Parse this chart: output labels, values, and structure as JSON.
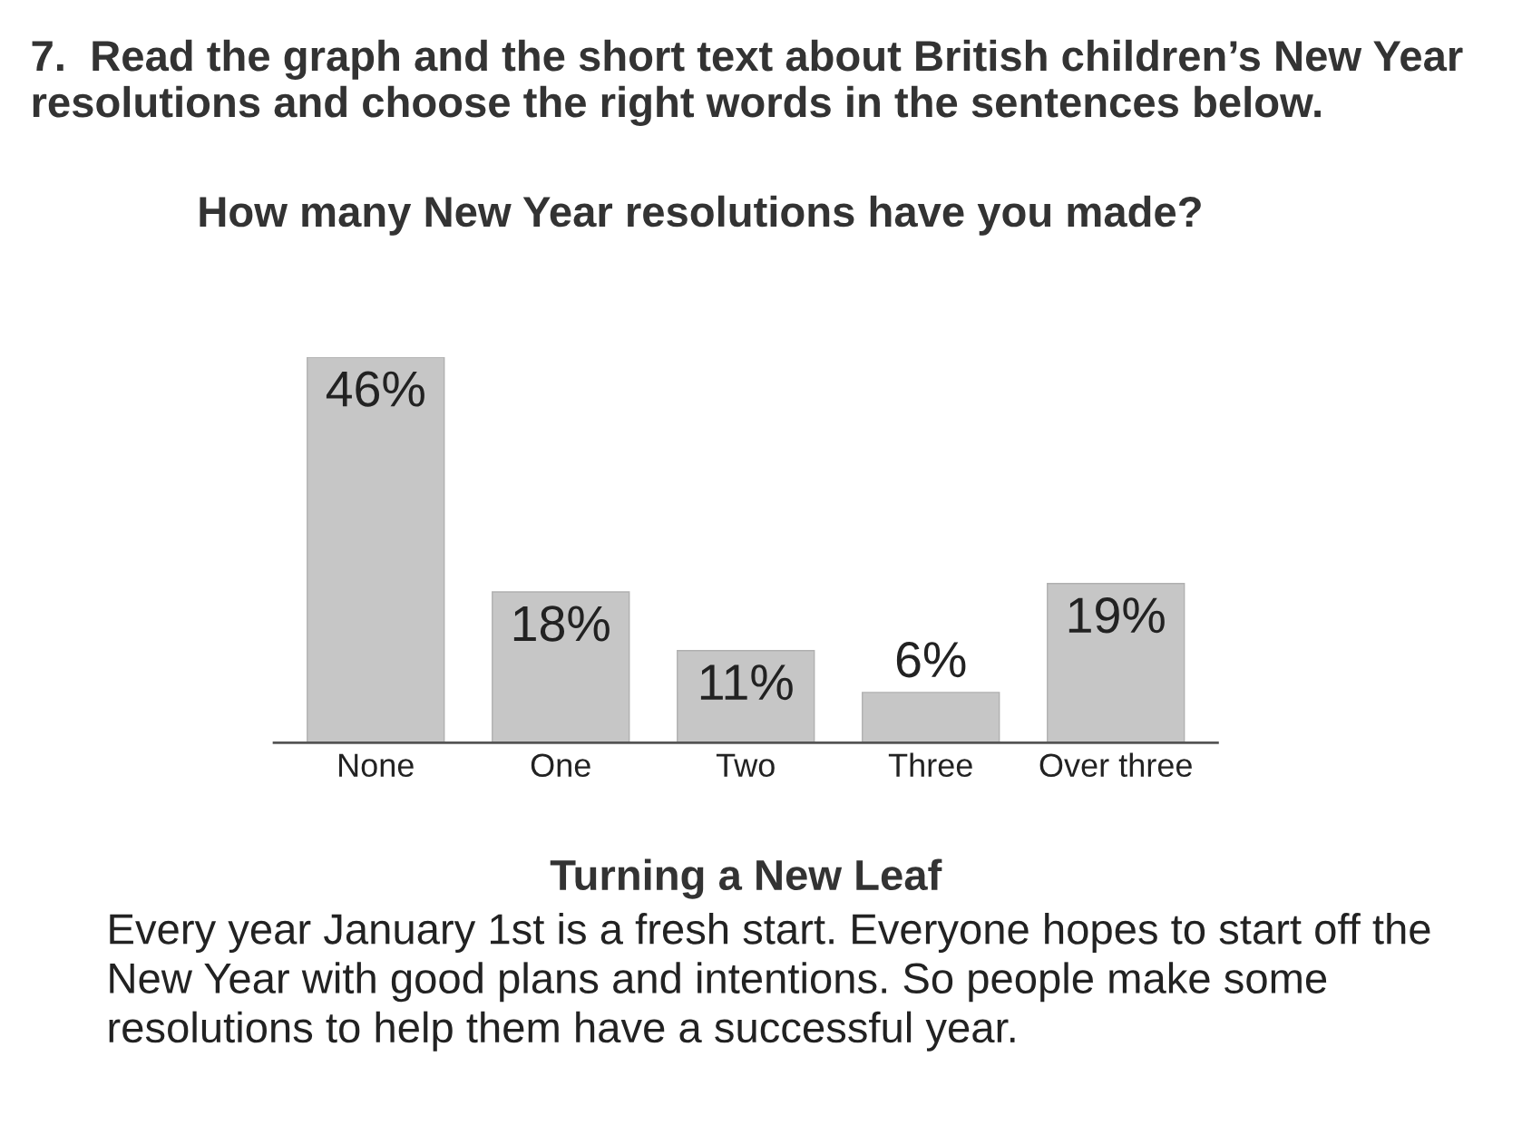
{
  "chart_data": {
    "type": "bar",
    "title": "7.  Read the graph and the short text about British children’s New Year resolutions and choose the right words in the sentences below.",
    "subtitle": "How many New Year resolutions have you made?",
    "categories": [
      "None",
      "One",
      "Two",
      "Three",
      "Over three"
    ],
    "values": [
      46,
      18,
      11,
      6,
      19
    ],
    "value_labels": [
      "46%",
      "18%",
      "11%",
      "6%",
      "19%"
    ],
    "color": "#c6c6c6",
    "grid": false,
    "legend": false,
    "annotations": [
      "Turning a New Leaf",
      "Every year January 1st is a fresh start. Everyone hopes to start off the New Year with good plans and intentions. So people make some resolutions to help them have a successful year."
    ]
  }
}
